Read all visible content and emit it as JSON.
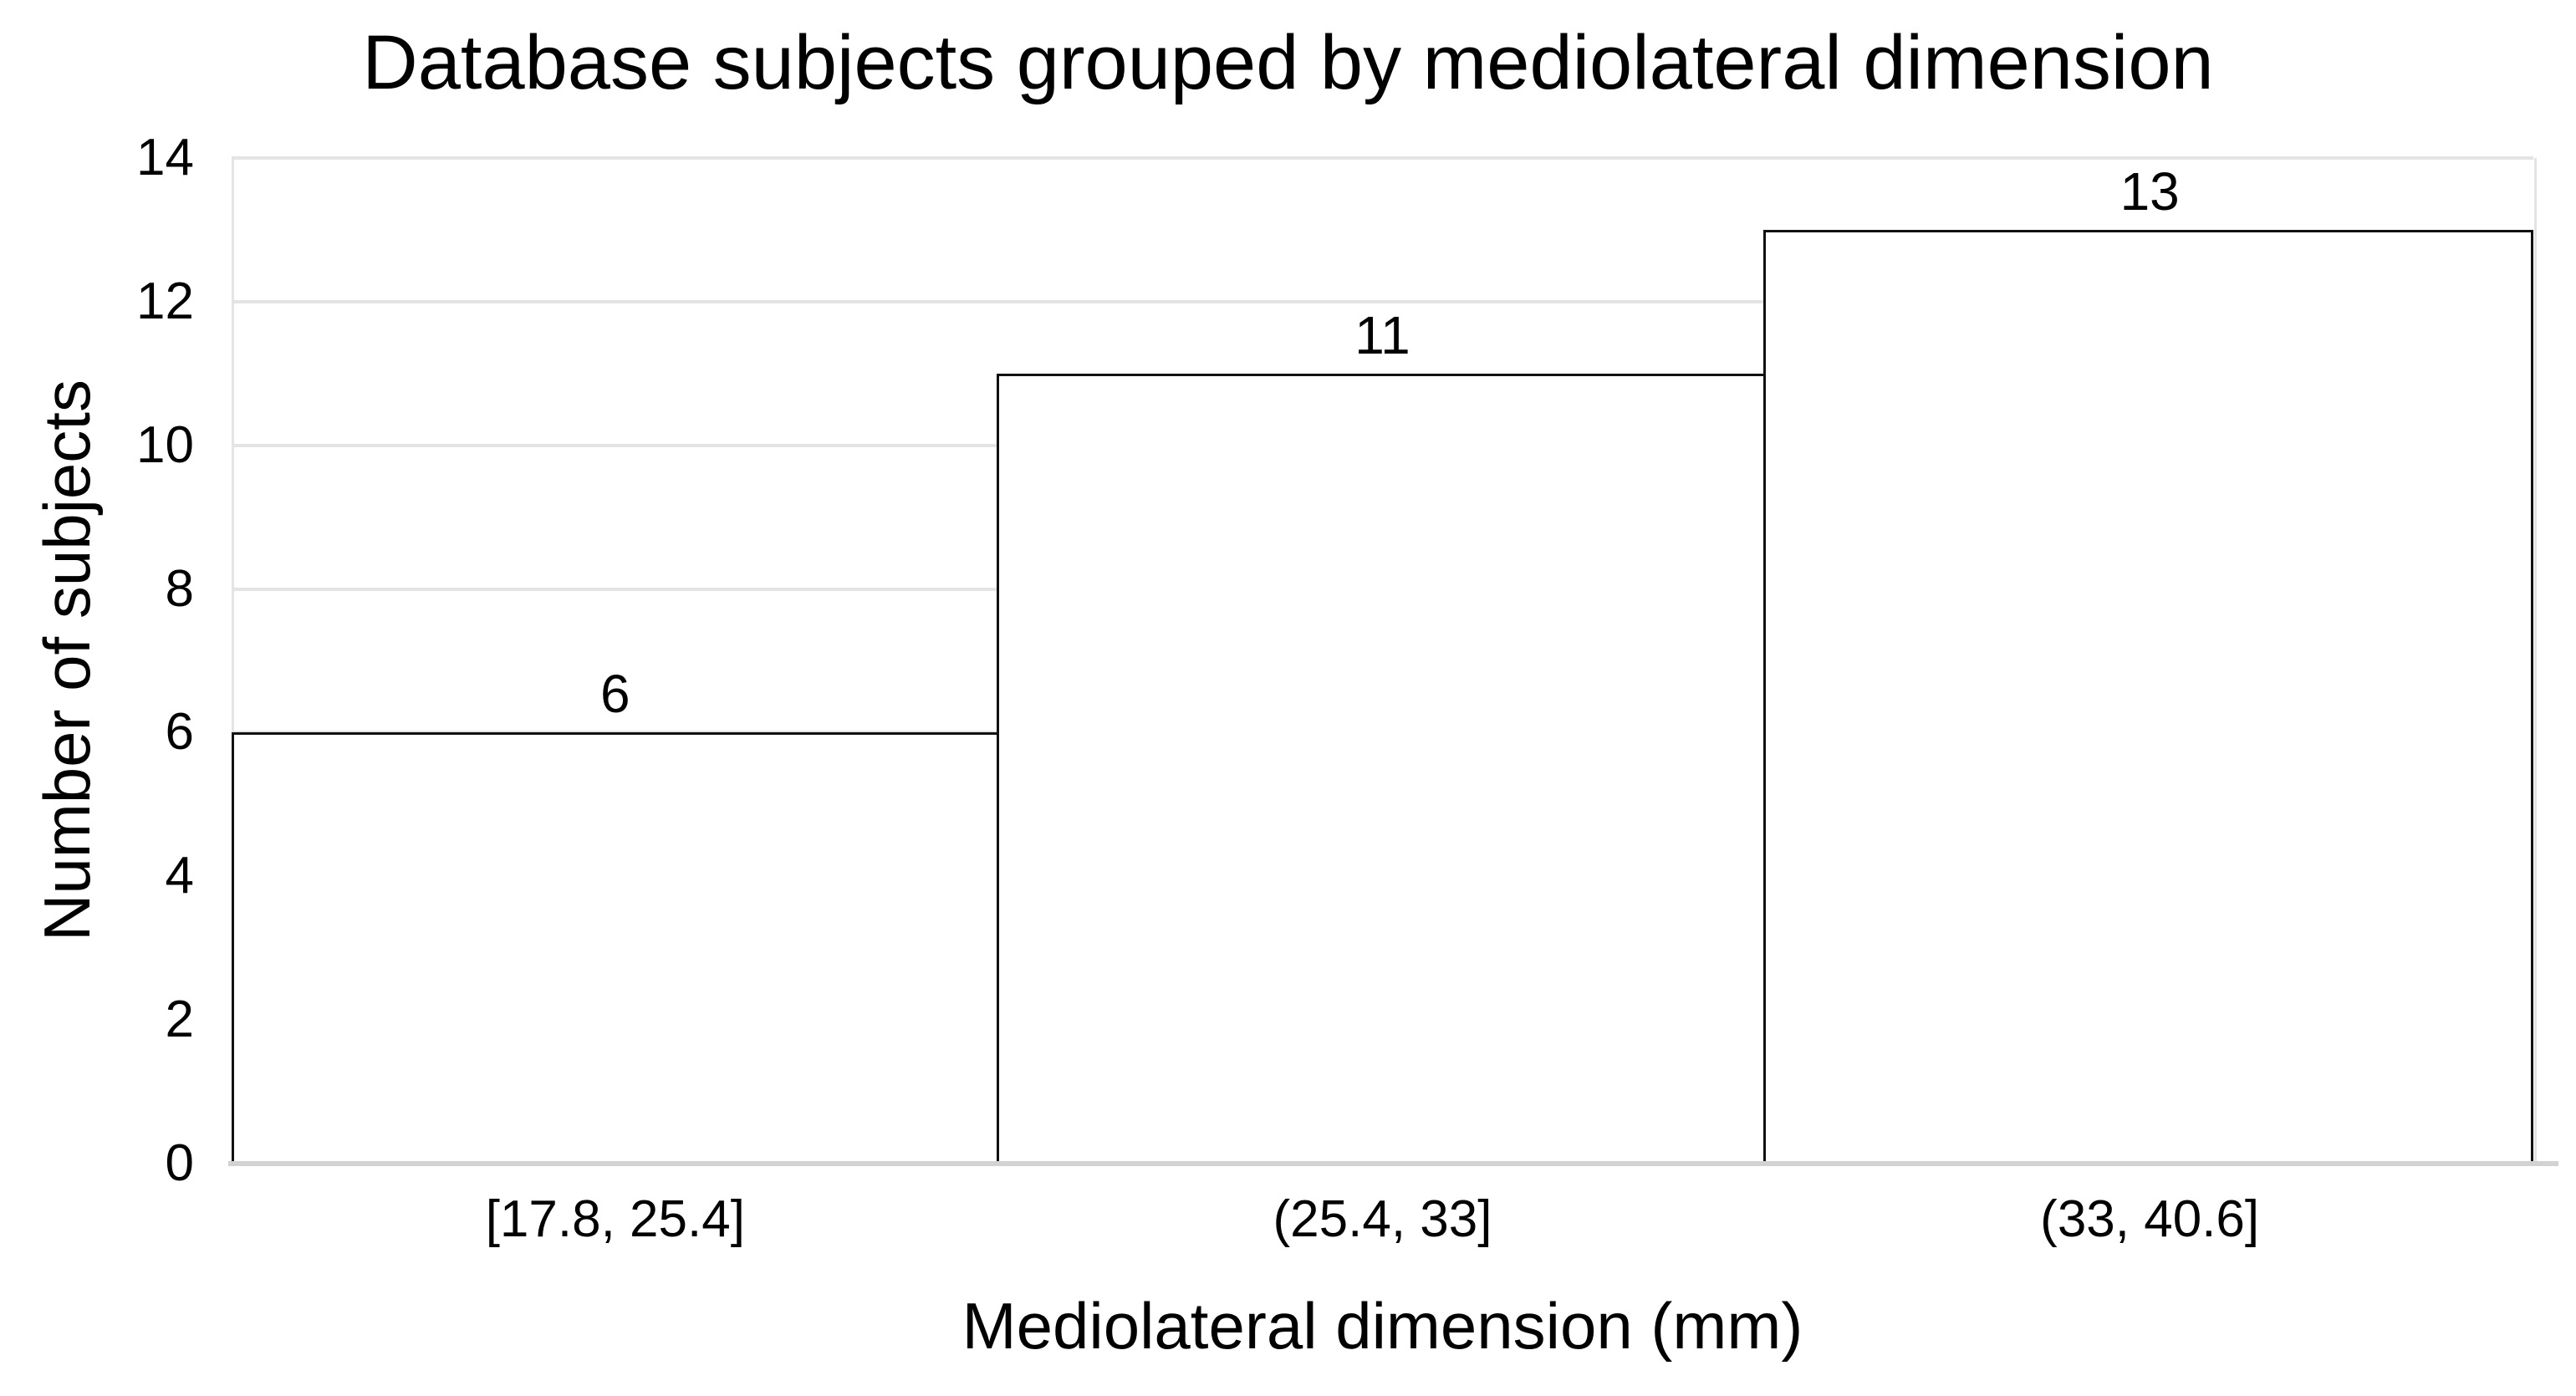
{
  "chart_data": {
    "type": "bar",
    "subtype": "histogram",
    "title": "Database subjects grouped by mediolateral dimension",
    "xlabel": "Mediolateral dimension (mm)",
    "ylabel": "Number of subjects",
    "categories": [
      "[17.8, 25.4]",
      "(25.4, 33]",
      "(33, 40.6]"
    ],
    "values": [
      6,
      11,
      13
    ],
    "data_labels": [
      "6",
      "11",
      "13"
    ],
    "yticks": [
      0,
      2,
      4,
      6,
      8,
      10,
      12,
      14
    ],
    "ylim": [
      0,
      14
    ],
    "grid": "horizontal",
    "legend": "none",
    "bar_gap": 0,
    "colors": {
      "background": "#ffffff",
      "bar_fill": "#ffffff",
      "bar_border": "#111111",
      "gridline": "#e4e4e4",
      "axis_line": "#d2d2d2",
      "text": "#000000"
    }
  }
}
